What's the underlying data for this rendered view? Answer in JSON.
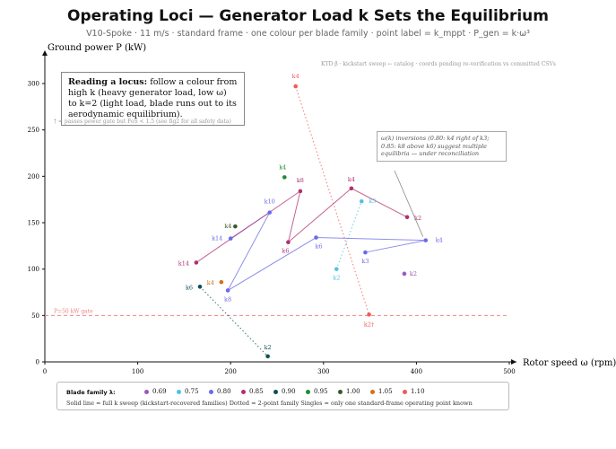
{
  "header": {
    "title": "Operating Loci — Generator Load k Sets the Equilibrium",
    "subtitle": "V10-Spoke · 11 m/s · standard frame · one colour per blade family · point label = k_mppt · P_gen = k·ω³"
  },
  "callout": {
    "lead": "Reading a locus:",
    "text": " follow a colour from high k (heavy generator load, low ω) to k=2 (light load, blade runs out to its aerodynamic equilibrium)."
  },
  "annotations": {
    "corner_note": "KTD β · kickstart sweep ← catalog · coords pending re-verification vs committed CSVs",
    "dagger_note": "† = passes power gate but FoS < 1.5 (see fig2 for all safety data)",
    "omega_note": "ω(k) inversions (0.80: k4 right of k3; 0.85: k8 above k6) suggest multiple equilibria — under reconciliation",
    "gate_label": "P=50 kW gate"
  },
  "legend": {
    "title": "Blade family λ:",
    "footer": "Solid line = full k sweep (kickstart-recovered families)    Dotted = 2-point family    Singles = only one standard-frame operating point known"
  },
  "colors": {
    "0.69": "#9b59b6",
    "0.75": "#4fc3e0",
    "0.80": "#6a6ae8",
    "0.85": "#b03070",
    "0.90": "#0d4f5c",
    "0.95": "#1e8c2e",
    "1.00": "#3a5a2a",
    "1.05": "#d4701a",
    "1.10": "#f05a5a",
    "gate": "#f08080"
  },
  "chart_data": {
    "type": "scatter",
    "xlabel": "Rotor speed ω (rpm)",
    "ylabel": "Ground power P (kW)",
    "xlim": [
      0,
      500
    ],
    "ylim": [
      0,
      330
    ],
    "xticks": [
      0,
      100,
      200,
      300,
      400,
      500
    ],
    "yticks": [
      0,
      50,
      100,
      150,
      200,
      250,
      300
    ],
    "grid": false,
    "hline": {
      "y": 50
    },
    "legend_placement": "bottom",
    "series": [
      {
        "name": "0.69",
        "line": "none",
        "points": [
          {
            "label": "k2",
            "x": 387,
            "y": 95
          }
        ]
      },
      {
        "name": "0.75",
        "line": "dotted",
        "points": [
          {
            "label": "k2",
            "x": 314,
            "y": 100
          },
          {
            "label": "k3",
            "x": 341,
            "y": 173
          }
        ]
      },
      {
        "name": "0.80",
        "line": "solid",
        "points": [
          {
            "label": "k14",
            "x": 200,
            "y": 133
          },
          {
            "label": "k10",
            "x": 242,
            "y": 161
          },
          {
            "label": "k8",
            "x": 197,
            "y": 77
          },
          {
            "label": "k6",
            "x": 292,
            "y": 134
          },
          {
            "label": "k4",
            "x": 410,
            "y": 131
          },
          {
            "label": "k3",
            "x": 345,
            "y": 118
          }
        ]
      },
      {
        "name": "0.85",
        "line": "solid",
        "points": [
          {
            "label": "k14",
            "x": 163,
            "y": 107
          },
          {
            "label": "k8",
            "x": 275,
            "y": 184
          },
          {
            "label": "k6",
            "x": 262,
            "y": 129
          },
          {
            "label": "k4",
            "x": 330,
            "y": 187
          },
          {
            "label": "k2",
            "x": 390,
            "y": 156
          }
        ]
      },
      {
        "name": "0.90",
        "line": "dotted",
        "points": [
          {
            "label": "k6",
            "x": 167,
            "y": 81
          },
          {
            "label": "k2",
            "x": 240,
            "y": 6
          }
        ]
      },
      {
        "name": "0.95",
        "line": "none",
        "points": [
          {
            "label": "k4",
            "x": 258,
            "y": 199
          }
        ]
      },
      {
        "name": "1.00",
        "line": "none",
        "points": [
          {
            "label": "k4",
            "x": 205,
            "y": 146
          }
        ]
      },
      {
        "name": "1.05",
        "line": "none",
        "points": [
          {
            "label": "k4",
            "x": 190,
            "y": 86
          }
        ]
      },
      {
        "name": "1.10",
        "line": "dotted",
        "points": [
          {
            "label": "k4",
            "x": 270,
            "y": 297
          },
          {
            "label": "k2†",
            "x": 349,
            "y": 51
          }
        ]
      }
    ]
  }
}
